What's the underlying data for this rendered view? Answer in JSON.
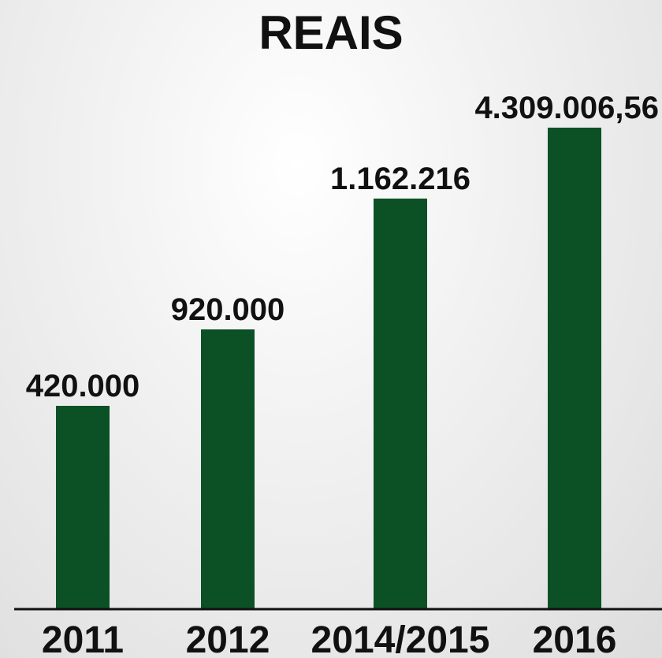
{
  "chart_data": {
    "type": "bar",
    "title": "REAIS",
    "categories": [
      "2011",
      "2012",
      "2014/2015",
      "2016"
    ],
    "values": [
      420000,
      920000,
      1162216,
      4309006.56
    ],
    "value_labels": [
      "420.000",
      "920.000",
      "1.162.216",
      "4.309.006,56"
    ],
    "xlabel": "",
    "ylabel": "",
    "grid": false,
    "legend": "none",
    "colors": {
      "bar": "#0b5125",
      "axis": "#111111",
      "text": "#111111"
    }
  }
}
